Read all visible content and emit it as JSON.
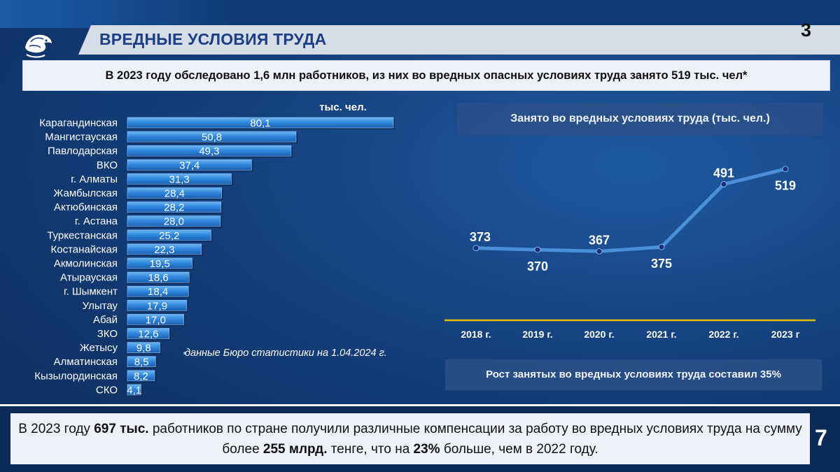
{
  "header": {
    "title": "ВРЕДНЫЕ УСЛОВИЯ ТРУДА",
    "slide_number": "3"
  },
  "headline": "В 2023 году обследовано 1,6 млн работников, из них во вредных опасных условиях труда занято 519 тыс. чел*",
  "chart_data": [
    {
      "type": "bar",
      "orientation": "horizontal",
      "unit_label": "тыс. чел.",
      "categories": [
        "Карагандинская",
        "Мангистауская",
        "Павлодарская",
        "ВКО",
        "г. Алматы",
        "Жамбылская",
        "Актюбинская",
        "г. Астана",
        "Туркестанская",
        "Костанайская",
        "Акмолинская",
        "Атырауская",
        "г. Шымкент",
        "Улытау",
        "Абай",
        "ЗКО",
        "Жетысу",
        "Алматинская",
        "Кызылординская",
        "СКО"
      ],
      "values": [
        80.1,
        50.8,
        49.3,
        37.4,
        31.3,
        28.4,
        28.2,
        28.0,
        25.2,
        22.3,
        19.5,
        18.6,
        18.4,
        17.9,
        17.0,
        12.6,
        9.8,
        8.5,
        8.2,
        4.1
      ],
      "value_labels": [
        "80,1",
        "50,8",
        "49,3",
        "37,4",
        "31,3",
        "28,4",
        "28,2",
        "28,0",
        "25,2",
        "22,3",
        "19,5",
        "18,6",
        "18,4",
        "17,9",
        "17,0",
        "12,6",
        "9,8",
        "8,5",
        "8,2",
        "4,1"
      ],
      "colors": {
        "bar": "#2b7fd6",
        "bar_highlight": "#5aa7ee"
      }
    },
    {
      "type": "line",
      "title": "Занято во вредных условиях труда (тыс. чел.)",
      "x": [
        "2018 г.",
        "2019 г.",
        "2020 г.",
        "2021 г.",
        "2022 г.",
        "2023 г"
      ],
      "values": [
        373,
        370,
        367,
        375,
        491,
        519
      ],
      "value_labels": [
        "373",
        "370",
        "367",
        "375",
        "491",
        "519"
      ],
      "ylim": [
        250,
        560
      ],
      "colors": {
        "line": "#4a90d9",
        "marker": "#1a2f78",
        "axis": "#e5c000"
      }
    }
  ],
  "footnote": "данные Бюро статистики на 1.04.2024 г.",
  "growth_note": "Рост занятых во вредных условиях труда составил 35%",
  "bottom": {
    "t1": "В 2023 году ",
    "b1": "697 тыс.",
    "t2": " работников по стране получили различные компенсации за работу во вредных условиях труда на сумму более ",
    "b2": "255 млрд.",
    "t3": " тенге, что на ",
    "b3": "23%",
    "t4": " больше, чем в 2022 году."
  },
  "page_number": "7"
}
